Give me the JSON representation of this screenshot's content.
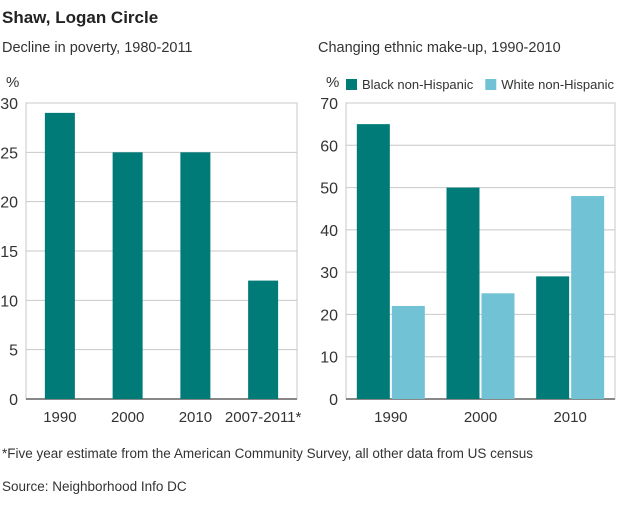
{
  "title": "Shaw, Logan Circle",
  "footnote": "*Five year estimate from the American Community Survey, all other data from US census",
  "source": "Source: Neighborhood Info DC",
  "colors": {
    "primary": "#007b78",
    "secondary": "#72c2d6",
    "grid": "#c8c8c8",
    "axis": "#888888"
  },
  "chart_data": [
    {
      "type": "bar",
      "title": "Decline in poverty, 1980-2011",
      "ylabel": "%",
      "ylim": [
        0,
        30
      ],
      "yticks": [
        0,
        5,
        10,
        15,
        20,
        25,
        30
      ],
      "grid": true,
      "categories": [
        "1990",
        "2000",
        "2010",
        "2007-2011*"
      ],
      "values": [
        29,
        25,
        25,
        12
      ]
    },
    {
      "type": "bar",
      "title": "Changing ethnic make-up, 1990-2010",
      "ylabel": "%",
      "ylim": [
        0,
        70
      ],
      "yticks": [
        0,
        10,
        20,
        30,
        40,
        50,
        60,
        70
      ],
      "grid": true,
      "legend": "top",
      "categories": [
        "1990",
        "2000",
        "2010"
      ],
      "series": [
        {
          "name": "Black non-Hispanic",
          "values": [
            65,
            50,
            29
          ]
        },
        {
          "name": "White non-Hispanic",
          "values": [
            22,
            25,
            48
          ]
        }
      ]
    }
  ]
}
